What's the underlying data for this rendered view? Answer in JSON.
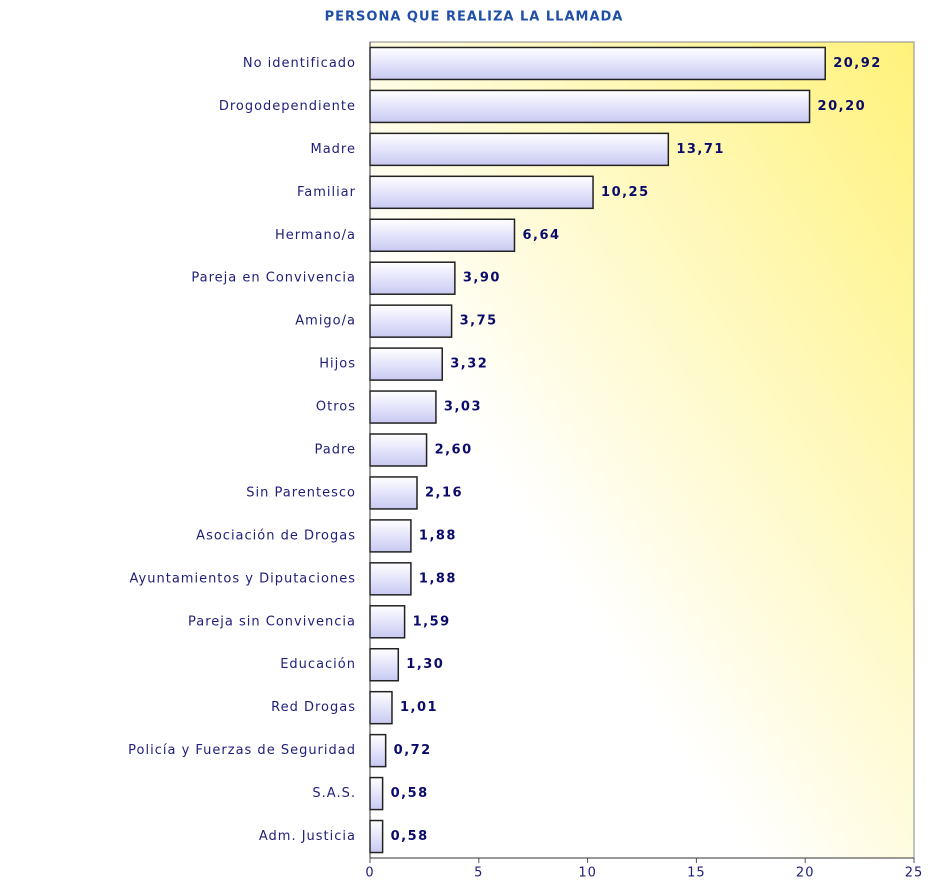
{
  "chart_data": {
    "type": "bar",
    "orientation": "horizontal",
    "title": "PERSONA QUE REALIZA LA LLAMADA",
    "categories": [
      "No identificado",
      "Drogodependiente",
      "Madre",
      "Familiar",
      "Hermano/a",
      "Pareja en Convivencia",
      "Amigo/a",
      "Hijos",
      "Otros",
      "Padre",
      "Sin Parentesco",
      "Asociación de Drogas",
      "Ayuntamientos y Diputaciones",
      "Pareja sin Convivencia",
      "Educación",
      "Red Drogas",
      "Policía y Fuerzas de Seguridad",
      "S.A.S.",
      "Adm. Justicia"
    ],
    "values": [
      20.92,
      20.2,
      13.71,
      10.25,
      6.64,
      3.9,
      3.75,
      3.32,
      3.03,
      2.6,
      2.16,
      1.88,
      1.88,
      1.59,
      1.3,
      1.01,
      0.72,
      0.58,
      0.58
    ],
    "value_labels": [
      "20,92",
      "20,20",
      "13,71",
      "10,25",
      "6,64",
      "3,90",
      "3,75",
      "3,32",
      "3,03",
      "2,60",
      "2,16",
      "1,88",
      "1,88",
      "1,59",
      "1,30",
      "1,01",
      "0,72",
      "0,58",
      "0,58"
    ],
    "color": "#dcdcf8",
    "xlim": [
      0,
      25
    ],
    "xticks": [
      0,
      5,
      10,
      15,
      20,
      25
    ],
    "grid": false
  }
}
